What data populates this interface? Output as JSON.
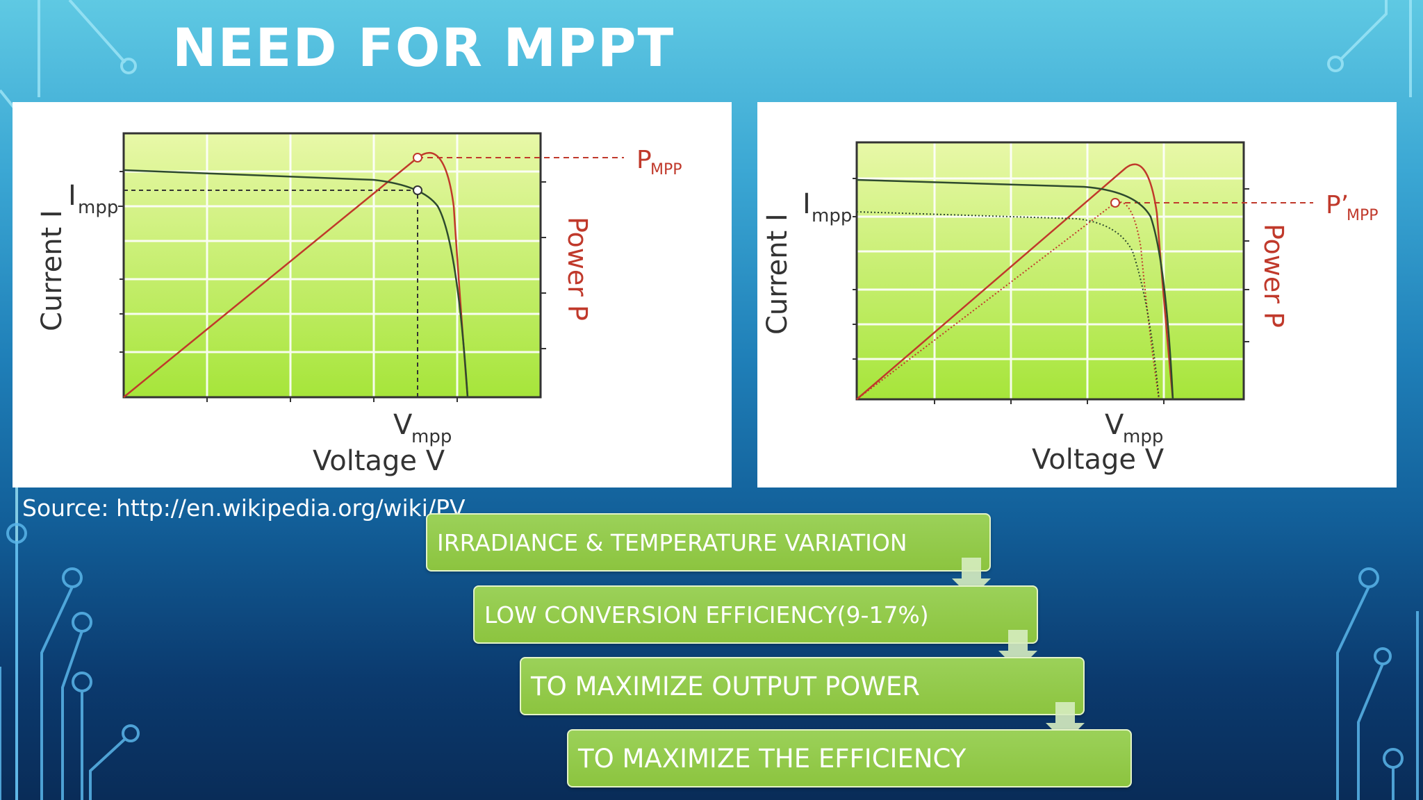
{
  "slide": {
    "title": "NEED FOR MPPT",
    "source": "Source: http://en.wikipedia.org/wiki/PV"
  },
  "left_chart": {
    "y_label": "Current I",
    "y2_label": "Power P",
    "x_label": "Voltage V",
    "i_mpp_label": "I",
    "i_mpp_sub": "mpp",
    "v_mpp_label": "V",
    "v_mpp_sub": "mpp",
    "p_mpp_label": "P",
    "p_mpp_sub": "MPP"
  },
  "right_chart": {
    "y_label": "Current I",
    "y2_label": "Power P",
    "x_label": "Voltage V",
    "i_mpp_label": "I",
    "i_mpp_sub": "mpp",
    "v_mpp_label": "V",
    "v_mpp_sub": "mpp",
    "p_mpp_label": "P’",
    "p_mpp_sub": "MPP"
  },
  "flow": [
    "IRRADIANCE & TEMPERATURE VARIATION",
    "LOW CONVERSION EFFICIENCY(9-17%)",
    "TO MAXIMIZE OUTPUT POWER",
    "TO MAXIMIZE THE EFFICIENCY"
  ],
  "colors": {
    "current_curve": "#2e4a2e",
    "power_curve": "#c0392b",
    "plot_fill_top": "#e6f7a0",
    "plot_fill_bottom": "#a8e63c",
    "flow_box": "#8cc43f"
  }
}
